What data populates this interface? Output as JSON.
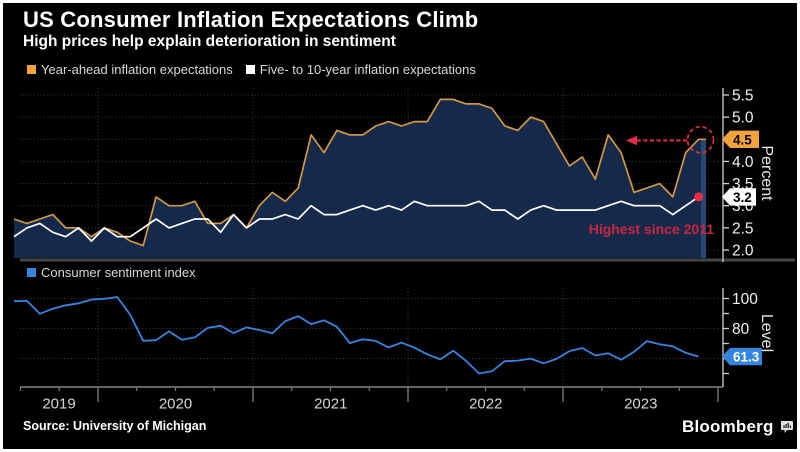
{
  "header": {
    "title": "US Consumer Inflation Expectations Climb",
    "subtitle": "High prices help explain deterioration in sentiment"
  },
  "legend_top": [
    {
      "label": "Year-ahead inflation expectations",
      "color": "#f3a33c"
    },
    {
      "label": "Five- to 10-year inflation expectations",
      "color": "#ffffff"
    }
  ],
  "legend_bottom": [
    {
      "label": "Consumer sentiment index",
      "color": "#3584e0"
    }
  ],
  "annotation": {
    "text": "Highest since 2011",
    "color": "#cf2440"
  },
  "footer": {
    "source": "Source: University of Michigan",
    "brand": "Bloomberg"
  },
  "chart_data": [
    {
      "type": "line",
      "panel": "top",
      "x_start": "2019-06",
      "x_end": "2023-11",
      "x_freq": "monthly",
      "ylabel": "Percent",
      "ylim": [
        2.0,
        5.5
      ],
      "yticks": [
        2.0,
        2.5,
        3.0,
        3.5,
        4.0,
        4.5,
        5.0,
        5.5
      ],
      "grid": "dotted",
      "area_fill_color": "#15294b",
      "series": [
        {
          "name": "Year-ahead inflation expectations",
          "color": "#d2983f",
          "end_label": "4.5",
          "end_label_bg": "#f3a33c",
          "end_label_text": "#000000",
          "values": [
            2.7,
            2.6,
            2.7,
            2.8,
            2.5,
            2.5,
            2.3,
            2.5,
            2.4,
            2.2,
            2.1,
            3.2,
            3.0,
            3.0,
            3.1,
            2.6,
            2.6,
            2.8,
            2.5,
            3.0,
            3.3,
            3.1,
            3.4,
            4.6,
            4.2,
            4.7,
            4.6,
            4.6,
            4.8,
            4.9,
            4.8,
            4.9,
            4.9,
            5.4,
            5.4,
            5.3,
            5.3,
            5.2,
            4.8,
            4.7,
            5.0,
            4.9,
            4.4,
            3.9,
            4.1,
            3.6,
            4.6,
            4.2,
            3.3,
            3.4,
            3.5,
            3.2,
            4.2,
            4.5
          ]
        },
        {
          "name": "Five- to 10-year inflation expectations",
          "color": "#ffffff",
          "end_label": "3.2",
          "end_label_bg": "#ffffff",
          "end_label_text": "#000000",
          "end_marker_color": "#ea2b48",
          "values": [
            2.3,
            2.5,
            2.6,
            2.4,
            2.3,
            2.5,
            2.2,
            2.5,
            2.3,
            2.3,
            2.5,
            2.7,
            2.5,
            2.6,
            2.7,
            2.7,
            2.4,
            2.8,
            2.5,
            2.7,
            2.7,
            2.8,
            2.7,
            3.0,
            2.8,
            2.8,
            2.9,
            3.0,
            2.9,
            3.0,
            2.9,
            3.1,
            3.0,
            3.0,
            3.0,
            3.0,
            3.1,
            2.9,
            2.9,
            2.7,
            2.9,
            3.0,
            2.9,
            2.9,
            2.9,
            2.9,
            3.0,
            3.1,
            3.0,
            3.0,
            3.0,
            2.8,
            3.0,
            3.2
          ]
        }
      ]
    },
    {
      "type": "line",
      "panel": "bottom",
      "x_start": "2019-06",
      "x_end": "2023-11",
      "x_freq": "monthly",
      "x_year_labels": [
        "2019",
        "2020",
        "2021",
        "2022",
        "2023"
      ],
      "ylabel": "Level",
      "ylim": [
        45,
        105
      ],
      "yticks": [
        50,
        60,
        70,
        80,
        90,
        100
      ],
      "ytick_labels": [
        100,
        80
      ],
      "grid": "dotted",
      "series": [
        {
          "name": "Consumer sentiment index",
          "color": "#3584e0",
          "end_label": "61.3",
          "end_label_bg": "#3584e0",
          "end_label_text": "#ffffff",
          "values": [
            98.2,
            98.4,
            89.8,
            93.2,
            95.5,
            96.8,
            99.3,
            99.8,
            101.0,
            89.1,
            71.8,
            72.3,
            78.1,
            72.5,
            74.1,
            80.4,
            81.8,
            76.9,
            80.7,
            79.0,
            76.8,
            84.9,
            88.3,
            82.9,
            85.5,
            81.2,
            70.3,
            72.8,
            71.7,
            67.4,
            70.6,
            67.2,
            62.8,
            59.4,
            65.2,
            58.4,
            50.0,
            51.5,
            58.2,
            58.6,
            59.9,
            56.8,
            59.7,
            64.9,
            67.0,
            62.0,
            63.5,
            59.2,
            64.4,
            71.6,
            69.5,
            68.1,
            63.8,
            61.3
          ]
        }
      ]
    }
  ]
}
